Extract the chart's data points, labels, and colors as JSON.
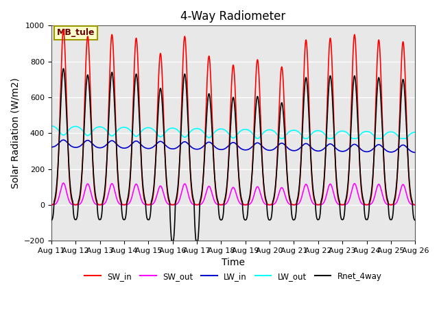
{
  "title": "4-Way Radiometer",
  "xlabel": "Time",
  "ylabel": "Solar Radiation (W/m2)",
  "ylim": [
    -200,
    1000
  ],
  "n_days": 15,
  "annotation_text": "MB_tule",
  "annotation_bbox": {
    "facecolor": "#ffffcc",
    "edgecolor": "#999900",
    "boxstyle": "square,pad=0.3"
  },
  "xtick_labels": [
    "Aug 11",
    "Aug 12",
    "Aug 13",
    "Aug 14",
    "Aug 15",
    "Aug 16",
    "Aug 17",
    "Aug 18",
    "Aug 19",
    "Aug 20",
    "Aug 21",
    "Aug 22",
    "Aug 23",
    "Aug 24",
    "Aug 25",
    "Aug 26"
  ],
  "legend_entries": [
    {
      "label": "SW_in",
      "color": "#ff0000",
      "lw": 1.2
    },
    {
      "label": "SW_out",
      "color": "#ff00ff",
      "lw": 1.2
    },
    {
      "label": "LW_in",
      "color": "#0000cc",
      "lw": 1.2
    },
    {
      "label": "LW_out",
      "color": "#00ffff",
      "lw": 1.2
    },
    {
      "label": "Rnet_4way",
      "color": "#000000",
      "lw": 1.2
    }
  ],
  "SW_in_peaks": [
    975,
    940,
    950,
    930,
    845,
    940,
    830,
    780,
    810,
    770,
    920,
    930,
    950,
    920,
    910
  ],
  "Rnet_peaks": [
    760,
    725,
    740,
    730,
    650,
    730,
    620,
    600,
    605,
    570,
    710,
    720,
    720,
    710,
    700
  ],
  "background_color": "#e8e8e8",
  "grid_color": "#ffffff",
  "title_fontsize": 12,
  "axis_label_fontsize": 10,
  "tick_fontsize": 8
}
